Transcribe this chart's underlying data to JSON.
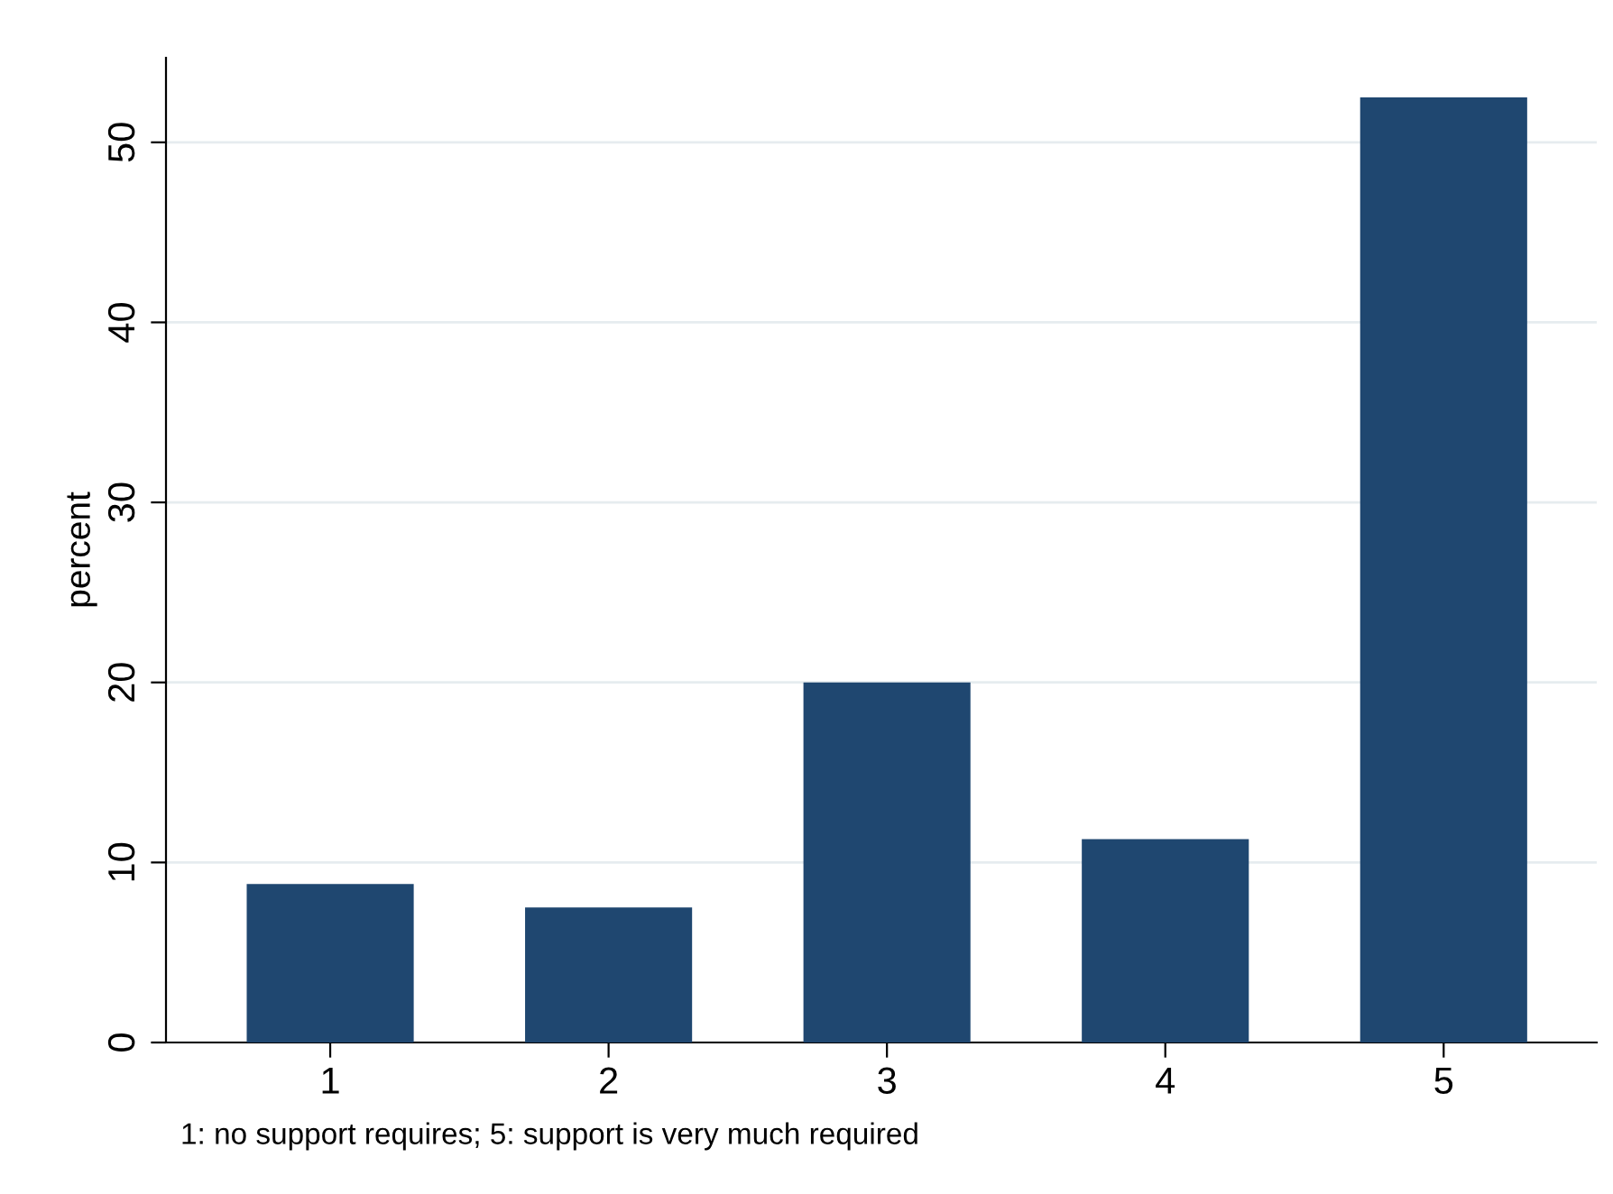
{
  "chart_data": {
    "type": "bar",
    "categories": [
      "1",
      "2",
      "3",
      "4",
      "5"
    ],
    "values": [
      8.8,
      7.5,
      20,
      11.3,
      52.5
    ],
    "color": "#1f4770",
    "ylabel": "percent",
    "ylim": [
      0,
      54.7
    ],
    "yticks": [
      0,
      10,
      20,
      30,
      40,
      50
    ],
    "grid": "y",
    "annotations": [
      "1: no support requires; 5: support is very much required"
    ]
  }
}
